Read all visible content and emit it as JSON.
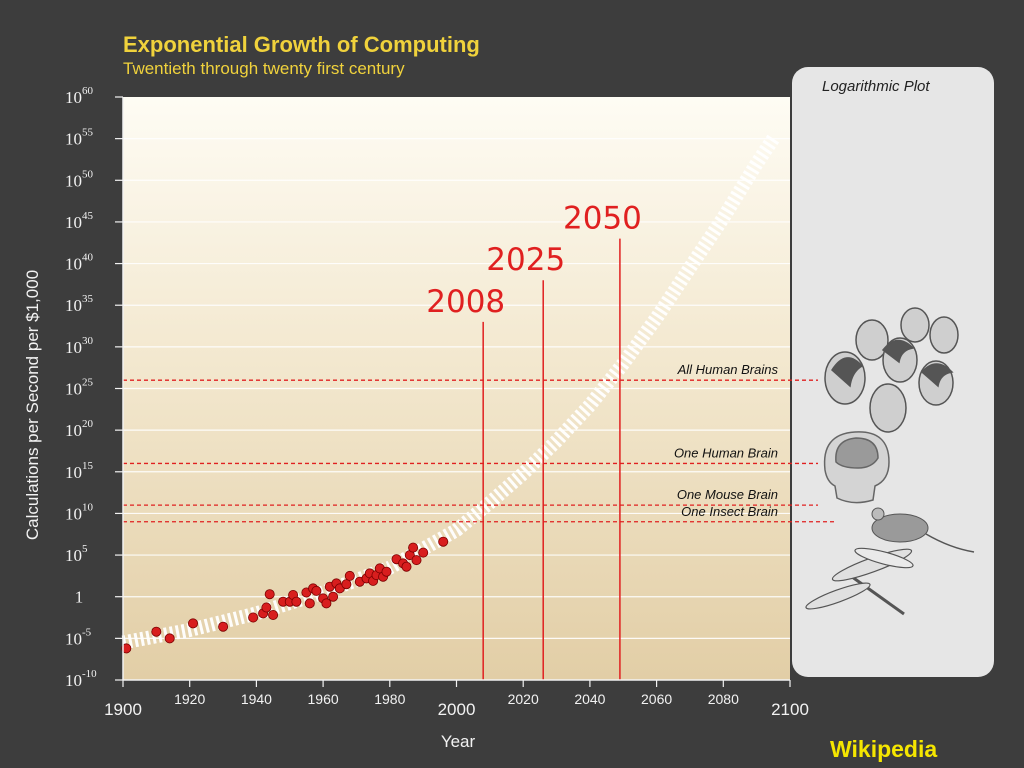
{
  "chart_data": {
    "type": "scatter",
    "title": "Exponential Growth of Computing",
    "subtitle": "Twentieth through twenty first century",
    "xlabel": "Year",
    "ylabel": "Calculations per Second per $1,000",
    "xlim": [
      1900,
      2100
    ],
    "ylim_log10": [
      -10,
      60
    ],
    "log_scale_y": true,
    "x_ticks": [
      1900,
      1920,
      1940,
      1960,
      1980,
      2000,
      2020,
      2040,
      2060,
      2080,
      2100
    ],
    "y_ticks": [
      {
        "base": "10",
        "exp": "60",
        "value": 60
      },
      {
        "base": "10",
        "exp": "55",
        "value": 55
      },
      {
        "base": "10",
        "exp": "50",
        "value": 50
      },
      {
        "base": "10",
        "exp": "45",
        "value": 45
      },
      {
        "base": "10",
        "exp": "40",
        "value": 40
      },
      {
        "base": "10",
        "exp": "35",
        "value": 35
      },
      {
        "base": "10",
        "exp": "30",
        "value": 30
      },
      {
        "base": "10",
        "exp": "25",
        "value": 25
      },
      {
        "base": "10",
        "exp": "20",
        "value": 20
      },
      {
        "base": "10",
        "exp": "15",
        "value": 15
      },
      {
        "base": "10",
        "exp": "10",
        "value": 10
      },
      {
        "base": "10",
        "exp": "5",
        "value": 5
      },
      {
        "base": "1",
        "exp": "",
        "value": 0
      },
      {
        "base": "10",
        "exp": "-5",
        "value": -5
      },
      {
        "base": "10",
        "exp": "-10",
        "value": -10
      }
    ],
    "points": [
      [
        1901,
        -6.2
      ],
      [
        1910,
        -4.2
      ],
      [
        1914,
        -5.0
      ],
      [
        1921,
        -3.2
      ],
      [
        1930,
        -3.6
      ],
      [
        1939,
        -2.5
      ],
      [
        1942,
        -2.0
      ],
      [
        1943,
        -1.3
      ],
      [
        1944,
        0.3
      ],
      [
        1945,
        -2.2
      ],
      [
        1948,
        -0.6
      ],
      [
        1950,
        -0.6
      ],
      [
        1951,
        0.2
      ],
      [
        1952,
        -0.6
      ],
      [
        1955,
        0.5
      ],
      [
        1956,
        -0.8
      ],
      [
        1957,
        1.0
      ],
      [
        1958,
        0.7
      ],
      [
        1960,
        -0.2
      ],
      [
        1961,
        -0.8
      ],
      [
        1962,
        1.2
      ],
      [
        1963,
        0.0
      ],
      [
        1964,
        1.6
      ],
      [
        1965,
        1.0
      ],
      [
        1967,
        1.5
      ],
      [
        1968,
        2.5
      ],
      [
        1971,
        1.8
      ],
      [
        1973,
        2.2
      ],
      [
        1974,
        2.8
      ],
      [
        1975,
        1.9
      ],
      [
        1976,
        2.6
      ],
      [
        1977,
        3.4
      ],
      [
        1978,
        2.4
      ],
      [
        1979,
        3.0
      ],
      [
        1982,
        4.5
      ],
      [
        1984,
        4.0
      ],
      [
        1985,
        3.6
      ],
      [
        1986,
        5.0
      ],
      [
        1987,
        5.9
      ],
      [
        1988,
        4.4
      ],
      [
        1990,
        5.3
      ],
      [
        1996,
        6.6
      ]
    ],
    "trend_x": [
      1900,
      1920,
      1940,
      1960,
      1980,
      2000,
      2010,
      2020,
      2030,
      2040,
      2050,
      2060,
      2070,
      2080,
      2090,
      2095
    ],
    "trend_y": [
      -5.5,
      -4.0,
      -2.0,
      0.5,
      3.5,
      8.0,
      11.3,
      14.8,
      18.7,
      23.0,
      28.0,
      33.5,
      39.5,
      45.5,
      52.0,
      55.0
    ],
    "thresholds": [
      {
        "label": "All Human Brains",
        "value": 26
      },
      {
        "label": "One Human Brain",
        "value": 16
      },
      {
        "label": "One Mouse Brain",
        "value": 11
      },
      {
        "label": "One Insect Brain",
        "value": 9
      }
    ],
    "markers": [
      {
        "label": "2008",
        "year": 2008,
        "top": 33
      },
      {
        "label": "2025",
        "year": 2026,
        "top": 38
      },
      {
        "label": "2050",
        "year": 2049,
        "top": 43
      }
    ]
  },
  "panel": {
    "title": "Logarithmic Plot"
  },
  "source": {
    "label": "Wikipedia"
  },
  "colors": {
    "point": "#d81e1e",
    "marker": "#e02020",
    "threshold": "#e02020",
    "plot_top": "#fefcf4",
    "plot_bottom": "#e2cea6",
    "title": "#f0d23c",
    "source": "#f5e600"
  }
}
